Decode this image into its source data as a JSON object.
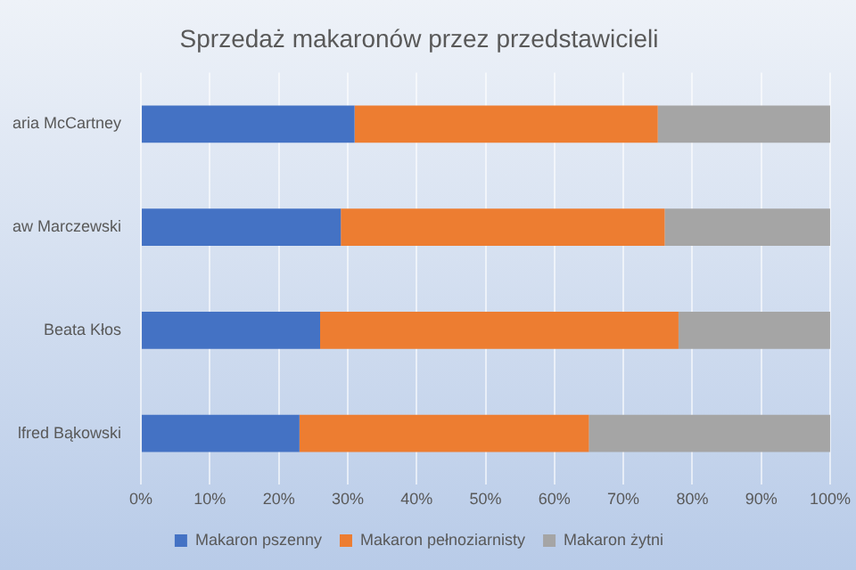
{
  "chart_data": {
    "type": "bar",
    "orientation": "horizontal",
    "stacked": true,
    "title": "Sprzedaż makaronów przez przedstawicieli",
    "categories": [
      "aria McCartney",
      "aw Marczewski",
      "Beata Kłos",
      "lfred Bąkowski"
    ],
    "series": [
      {
        "name": "Makaron pszenny",
        "color": "#4472c4",
        "values": [
          31,
          29,
          26,
          23
        ]
      },
      {
        "name": "Makaron pełnoziarnisty",
        "color": "#ed7d31",
        "values": [
          44,
          47,
          52,
          42
        ]
      },
      {
        "name": "Makaron żytni",
        "color": "#a5a5a5",
        "values": [
          25,
          24,
          22,
          35
        ]
      }
    ],
    "xlim": [
      0,
      100
    ],
    "xticks": [
      {
        "value": 0,
        "label": "0%"
      },
      {
        "value": 10,
        "label": "10%"
      },
      {
        "value": 20,
        "label": "20%"
      },
      {
        "value": 30,
        "label": "30%"
      },
      {
        "value": 40,
        "label": "40%"
      },
      {
        "value": 50,
        "label": "50%"
      },
      {
        "value": 60,
        "label": "60%"
      },
      {
        "value": 70,
        "label": "70%"
      },
      {
        "value": 80,
        "label": "80%"
      },
      {
        "value": 90,
        "label": "90%"
      },
      {
        "value": 100,
        "label": "100%"
      }
    ],
    "grid": "x",
    "legend": "bottom"
  }
}
